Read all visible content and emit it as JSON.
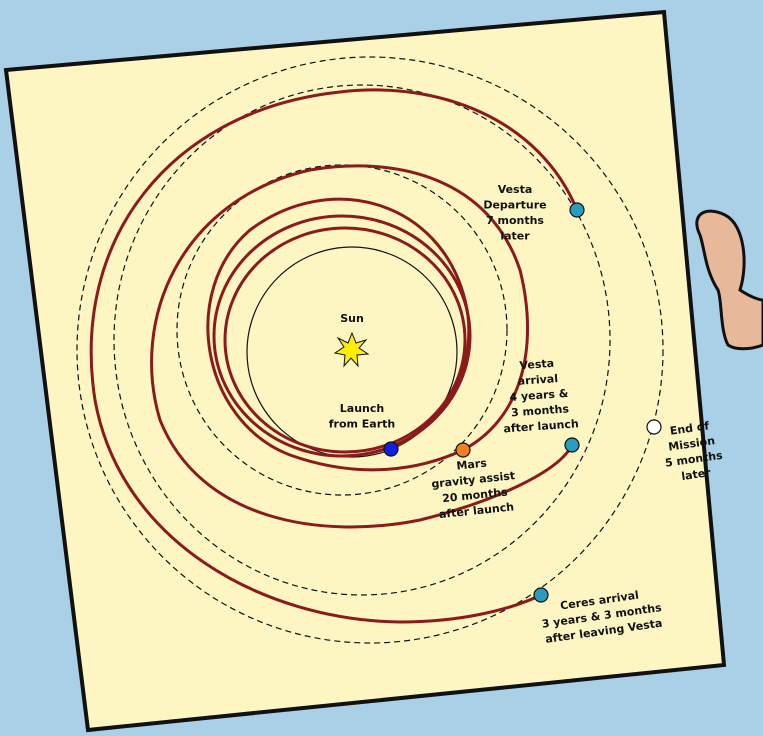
{
  "labels": [
    {
      "lines": [
        "Sun"
      ]
    },
    {
      "lines": [
        "Launch",
        "from Earth"
      ]
    },
    {
      "lines": [
        "Vesta",
        "Departure",
        "7 months",
        "later"
      ]
    },
    {
      "lines": [
        "Vesta",
        "arrival",
        "4 years &",
        "3 months",
        "after launch"
      ]
    },
    {
      "lines": [
        "Mars",
        "gravity assist",
        "20 months",
        "after launch"
      ]
    },
    {
      "lines": [
        "End of",
        "Mission",
        "5 months",
        "later"
      ]
    },
    {
      "lines": [
        "Ceres arrival",
        "3 years & 3 months",
        "after leaving Vesta"
      ]
    }
  ]
}
